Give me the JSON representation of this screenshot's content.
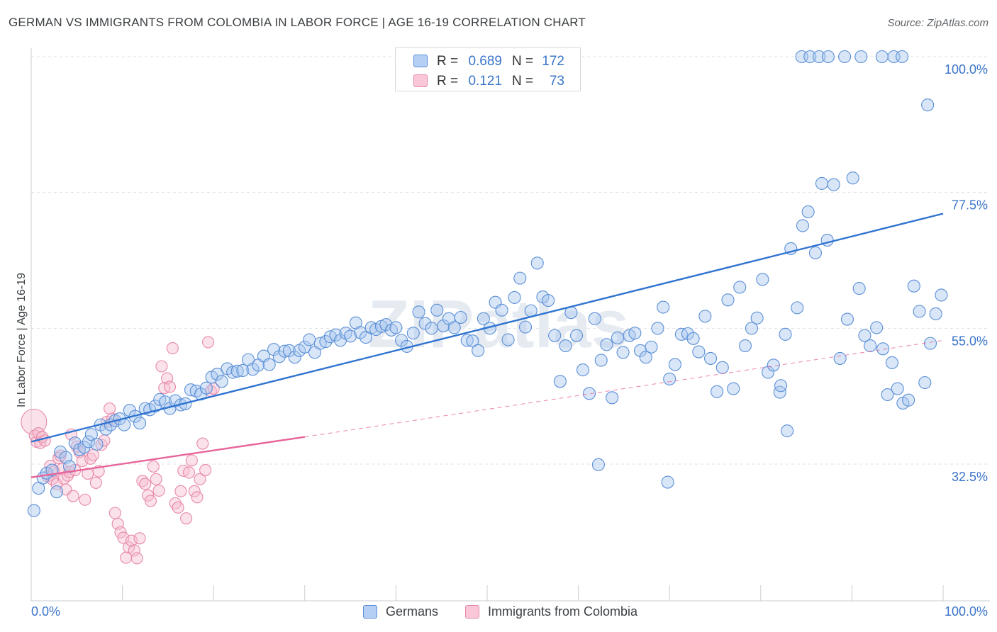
{
  "header": {
    "title": "GERMAN VS IMMIGRANTS FROM COLOMBIA IN LABOR FORCE | AGE 16-19 CORRELATION CHART",
    "source": "Source: ZipAtlas.com"
  },
  "legend_top": [
    {
      "r_label": "R =",
      "r_value": "0.689",
      "n_label": "N =",
      "n_value": "172"
    },
    {
      "r_label": "R =",
      "r_value": "0.121",
      "n_label": "N =",
      "n_value": "73"
    }
  ],
  "legend_bottom": [
    "Germans",
    "Immigrants from Colombia"
  ],
  "colors": {
    "germans_fill": "#a9c8f0",
    "germans_stroke": "#5b8fd6",
    "germans_line": "#2f74d0",
    "colombia_fill": "#f7bdd0",
    "colombia_stroke": "#e689a8",
    "colombia_line": "#e8649a",
    "tick_label": "#3b74c8",
    "grid": "#dfe1e5"
  },
  "chart_data": {
    "type": "scatter",
    "title": "GERMAN VS IMMIGRANTS FROM COLOMBIA IN LABOR FORCE | AGE 16-19 CORRELATION CHART",
    "xlabel": "",
    "ylabel": "In Labor Force | Age 16-19",
    "x_tick_labels": [
      "0.0%",
      "100.0%"
    ],
    "y_tick_labels": [
      "100.0%",
      "77.5%",
      "55.0%",
      "32.5%"
    ],
    "xlim": [
      0,
      100
    ],
    "ylim": [
      12.0,
      102.0
    ],
    "y_ticks": [
      100.0,
      77.5,
      55.0,
      32.5
    ],
    "grid": "horizontal dashed",
    "watermark": "ZIPatlas",
    "series": [
      {
        "name": "Germans",
        "r": 0.689,
        "n": 172,
        "trend": {
          "x": [
            0,
            100
          ],
          "y": [
            36.2,
            74.0
          ],
          "style": "solid"
        },
        "points": [
          [
            0.3,
            24.8
          ],
          [
            0.8,
            28.5
          ],
          [
            1.3,
            30.2
          ],
          [
            1.7,
            31.0
          ],
          [
            2.3,
            31.5
          ],
          [
            2.8,
            27.9
          ],
          [
            3.2,
            34.5
          ],
          [
            3.8,
            33.6
          ],
          [
            4.2,
            32.1
          ],
          [
            4.8,
            36.0
          ],
          [
            5.3,
            34.9
          ],
          [
            5.8,
            35.3
          ],
          [
            6.3,
            36.2
          ],
          [
            6.6,
            37.4
          ],
          [
            7.2,
            35.8
          ],
          [
            7.6,
            39.0
          ],
          [
            8.2,
            38.3
          ],
          [
            8.7,
            39.0
          ],
          [
            9.2,
            39.7
          ],
          [
            9.7,
            40.0
          ],
          [
            10.2,
            39.0
          ],
          [
            10.8,
            41.4
          ],
          [
            11.4,
            40.4
          ],
          [
            11.9,
            39.3
          ],
          [
            12.5,
            41.7
          ],
          [
            13.0,
            41.5
          ],
          [
            13.6,
            42.1
          ],
          [
            14.1,
            43.2
          ],
          [
            14.7,
            42.8
          ],
          [
            15.2,
            41.7
          ],
          [
            15.8,
            43.0
          ],
          [
            16.4,
            42.3
          ],
          [
            16.9,
            42.5
          ],
          [
            17.5,
            44.8
          ],
          [
            18.1,
            44.6
          ],
          [
            18.6,
            44.1
          ],
          [
            19.2,
            45.1
          ],
          [
            19.8,
            46.9
          ],
          [
            20.4,
            47.4
          ],
          [
            20.9,
            46.2
          ],
          [
            21.5,
            48.3
          ],
          [
            22.1,
            47.7
          ],
          [
            22.6,
            47.9
          ],
          [
            23.2,
            48.0
          ],
          [
            23.8,
            49.8
          ],
          [
            24.3,
            48.2
          ],
          [
            24.9,
            48.9
          ],
          [
            25.5,
            50.4
          ],
          [
            26.1,
            49.0
          ],
          [
            26.6,
            51.5
          ],
          [
            27.2,
            50.3
          ],
          [
            27.8,
            51.2
          ],
          [
            28.3,
            51.3
          ],
          [
            28.9,
            50.2
          ],
          [
            29.4,
            51.3
          ],
          [
            30.0,
            51.9
          ],
          [
            30.5,
            53.1
          ],
          [
            31.1,
            51.0
          ],
          [
            31.7,
            52.5
          ],
          [
            32.3,
            52.8
          ],
          [
            32.8,
            53.6
          ],
          [
            33.4,
            53.9
          ],
          [
            33.9,
            53.0
          ],
          [
            34.5,
            54.2
          ],
          [
            35.0,
            53.7
          ],
          [
            35.6,
            55.9
          ],
          [
            36.1,
            54.3
          ],
          [
            36.7,
            53.5
          ],
          [
            37.3,
            55.1
          ],
          [
            37.8,
            54.8
          ],
          [
            38.4,
            55.3
          ],
          [
            38.9,
            55.6
          ],
          [
            39.5,
            54.7
          ],
          [
            40.0,
            55.1
          ],
          [
            40.6,
            53.0
          ],
          [
            41.2,
            52.0
          ],
          [
            41.9,
            54.2
          ],
          [
            42.5,
            57.7
          ],
          [
            43.2,
            55.8
          ],
          [
            43.9,
            55.0
          ],
          [
            44.5,
            58.0
          ],
          [
            45.2,
            55.4
          ],
          [
            45.8,
            56.6
          ],
          [
            46.4,
            55.1
          ],
          [
            47.1,
            56.8
          ],
          [
            47.8,
            53.0
          ],
          [
            48.4,
            52.9
          ],
          [
            49.0,
            51.3
          ],
          [
            49.6,
            56.6
          ],
          [
            50.3,
            55.0
          ],
          [
            50.9,
            59.3
          ],
          [
            51.6,
            58.0
          ],
          [
            52.3,
            53.1
          ],
          [
            53.0,
            60.1
          ],
          [
            53.6,
            63.3
          ],
          [
            54.2,
            55.2
          ],
          [
            54.8,
            57.9
          ],
          [
            55.5,
            65.8
          ],
          [
            56.1,
            60.2
          ],
          [
            56.7,
            59.6
          ],
          [
            57.4,
            53.8
          ],
          [
            58.0,
            46.2
          ],
          [
            58.6,
            52.1
          ],
          [
            59.2,
            57.6
          ],
          [
            59.8,
            53.8
          ],
          [
            60.5,
            48.1
          ],
          [
            61.2,
            44.2
          ],
          [
            61.8,
            56.6
          ],
          [
            62.5,
            49.7
          ],
          [
            63.1,
            52.3
          ],
          [
            63.7,
            43.5
          ],
          [
            64.3,
            53.4
          ],
          [
            64.9,
            51.0
          ],
          [
            65.6,
            53.8
          ],
          [
            66.2,
            54.2
          ],
          [
            66.8,
            51.3
          ],
          [
            67.4,
            50.2
          ],
          [
            68.0,
            51.9
          ],
          [
            68.7,
            55.0
          ],
          [
            69.3,
            58.5
          ],
          [
            70.0,
            46.6
          ],
          [
            70.6,
            49.0
          ],
          [
            71.3,
            54.0
          ],
          [
            72.0,
            54.1
          ],
          [
            72.6,
            53.3
          ],
          [
            73.2,
            51.1
          ],
          [
            73.9,
            57.0
          ],
          [
            74.5,
            50.0
          ],
          [
            75.2,
            44.5
          ],
          [
            75.8,
            48.5
          ],
          [
            76.4,
            59.7
          ],
          [
            77.0,
            45.0
          ],
          [
            77.7,
            61.8
          ],
          [
            78.3,
            52.1
          ],
          [
            79.0,
            55.0
          ],
          [
            79.6,
            56.7
          ],
          [
            80.2,
            63.1
          ],
          [
            80.8,
            47.7
          ],
          [
            81.4,
            48.9
          ],
          [
            82.1,
            44.4
          ],
          [
            82.7,
            54.0
          ],
          [
            83.3,
            68.2
          ],
          [
            84.0,
            58.4
          ],
          [
            84.6,
            72.0
          ],
          [
            85.2,
            74.3
          ],
          [
            86.0,
            67.5
          ],
          [
            86.7,
            79.0
          ],
          [
            87.3,
            69.6
          ],
          [
            88.0,
            78.8
          ],
          [
            88.7,
            50.0
          ],
          [
            89.5,
            56.5
          ],
          [
            90.1,
            79.9
          ],
          [
            90.8,
            61.6
          ],
          [
            91.4,
            53.8
          ],
          [
            92.0,
            52.1
          ],
          [
            92.7,
            55.1
          ],
          [
            93.4,
            51.6
          ],
          [
            93.9,
            44.0
          ],
          [
            94.4,
            49.3
          ],
          [
            95.0,
            45.0
          ],
          [
            95.6,
            42.6
          ],
          [
            96.2,
            43.1
          ],
          [
            96.8,
            62.0
          ],
          [
            97.4,
            57.8
          ],
          [
            98.0,
            46.0
          ],
          [
            98.6,
            52.5
          ],
          [
            99.2,
            57.4
          ],
          [
            99.8,
            60.5
          ],
          [
            62.2,
            32.4
          ],
          [
            69.8,
            29.5
          ],
          [
            84.5,
            100.0
          ],
          [
            85.4,
            100.0
          ],
          [
            86.4,
            100.0
          ],
          [
            87.4,
            100.0
          ],
          [
            89.2,
            100.0
          ],
          [
            91.0,
            100.0
          ],
          [
            93.3,
            100.0
          ],
          [
            94.6,
            100.0
          ],
          [
            95.5,
            100.0
          ],
          [
            98.3,
            92.0
          ],
          [
            82.2,
            45.5
          ],
          [
            82.9,
            38.0
          ]
        ]
      },
      {
        "name": "Immigrants from Colombia",
        "r": 0.121,
        "n": 73,
        "trend_solid": {
          "x": [
            0,
            30
          ],
          "y": [
            30.3,
            37.0
          ]
        },
        "trend_dashed": {
          "x": [
            30,
            100
          ],
          "y": [
            37.0,
            53.0
          ]
        },
        "points": [
          [
            0.3,
            39.5
          ],
          [
            0.4,
            37.2
          ],
          [
            0.6,
            36.2
          ],
          [
            0.8,
            37.6
          ],
          [
            1.0,
            36.0
          ],
          [
            1.2,
            37.0
          ],
          [
            1.5,
            36.4
          ],
          [
            1.8,
            30.5
          ],
          [
            2.1,
            32.2
          ],
          [
            2.3,
            30.0
          ],
          [
            2.5,
            31.3
          ],
          [
            2.8,
            29.2
          ],
          [
            3.0,
            33.5
          ],
          [
            3.2,
            33.9
          ],
          [
            3.4,
            31.7
          ],
          [
            3.6,
            30.1
          ],
          [
            3.8,
            28.3
          ],
          [
            4.0,
            30.6
          ],
          [
            4.2,
            31.2
          ],
          [
            4.4,
            37.4
          ],
          [
            4.6,
            27.2
          ],
          [
            4.8,
            31.5
          ],
          [
            5.0,
            35.4
          ],
          [
            5.3,
            34.5
          ],
          [
            5.6,
            33.0
          ],
          [
            5.9,
            26.6
          ],
          [
            6.2,
            30.9
          ],
          [
            6.5,
            33.4
          ],
          [
            6.8,
            34.0
          ],
          [
            7.1,
            29.4
          ],
          [
            7.4,
            31.3
          ],
          [
            7.7,
            35.7
          ],
          [
            8.0,
            36.4
          ],
          [
            8.3,
            39.5
          ],
          [
            8.6,
            41.7
          ],
          [
            8.9,
            40.0
          ],
          [
            9.2,
            24.4
          ],
          [
            9.5,
            22.6
          ],
          [
            9.8,
            21.2
          ],
          [
            10.1,
            20.3
          ],
          [
            10.4,
            17.0
          ],
          [
            10.7,
            18.7
          ],
          [
            11.0,
            19.8
          ],
          [
            11.3,
            18.2
          ],
          [
            11.6,
            16.9
          ],
          [
            11.9,
            20.2
          ],
          [
            12.2,
            29.7
          ],
          [
            12.5,
            29.2
          ],
          [
            12.8,
            27.3
          ],
          [
            13.1,
            26.4
          ],
          [
            13.4,
            32.1
          ],
          [
            13.7,
            30.0
          ],
          [
            14.0,
            28.1
          ],
          [
            14.3,
            48.7
          ],
          [
            14.6,
            45.1
          ],
          [
            14.9,
            46.7
          ],
          [
            15.2,
            45.3
          ],
          [
            15.5,
            51.7
          ],
          [
            15.8,
            26.0
          ],
          [
            16.1,
            25.3
          ],
          [
            16.4,
            28.0
          ],
          [
            16.7,
            31.4
          ],
          [
            17.0,
            23.5
          ],
          [
            17.3,
            31.1
          ],
          [
            17.6,
            33.1
          ],
          [
            17.9,
            28.0
          ],
          [
            18.2,
            27.0
          ],
          [
            18.5,
            30.0
          ],
          [
            18.8,
            35.9
          ],
          [
            19.1,
            31.5
          ],
          [
            19.4,
            52.7
          ],
          [
            19.7,
            44.6
          ],
          [
            20.0,
            45.0
          ]
        ]
      }
    ]
  }
}
